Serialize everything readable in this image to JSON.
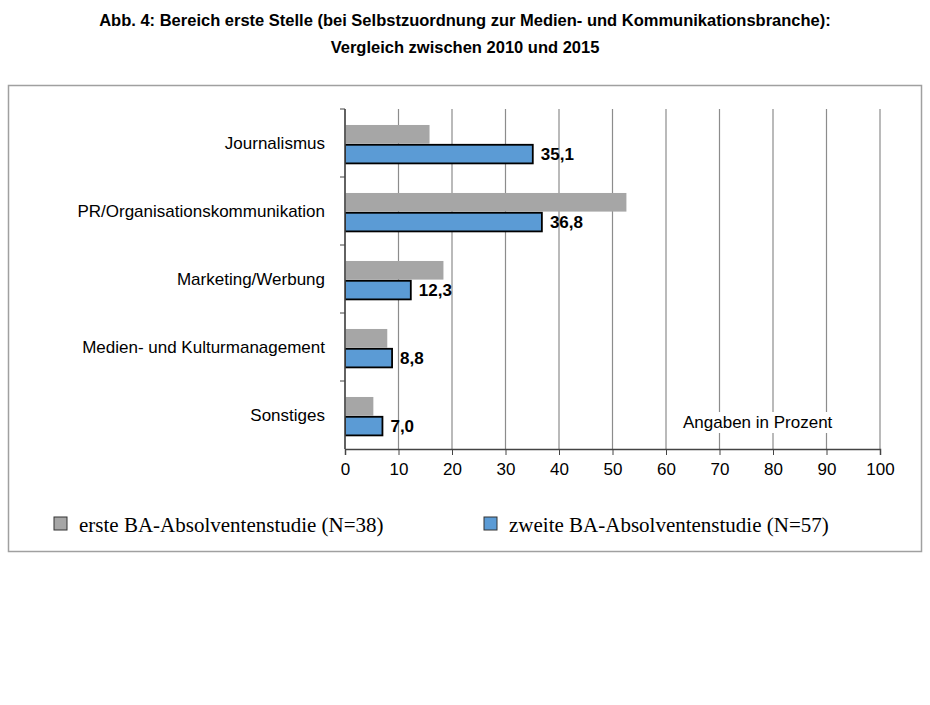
{
  "chart_data": {
    "type": "bar",
    "orientation": "horizontal",
    "title": "Abb. 4: Bereich erste Stelle (bei Selbstzuordnung zur Medien- und Kommunikationsbranche):",
    "subtitle": "Vergleich zwischen 2010 und 2015",
    "categories": [
      "Journalismus",
      "PR/Organisationskommunikation",
      "Marketing/Werbung",
      "Medien- und Kulturmanagement",
      "Sonstiges"
    ],
    "series": [
      {
        "name": "erste BA-Absolventenstudie (N=38)",
        "color": "#a6a6a6",
        "values": [
          15.8,
          52.6,
          18.4,
          7.9,
          5.3
        ]
      },
      {
        "name": "zweite BA-Absolventenstudie (N=57)",
        "color": "#5b9bd5",
        "values": [
          35.1,
          36.8,
          12.3,
          8.8,
          7.0
        ],
        "value_labels": [
          "35,1",
          "36,8",
          "12,3",
          "8,8",
          "7,0"
        ]
      }
    ],
    "xlim": [
      0,
      100
    ],
    "xticks": [
      0,
      10,
      20,
      30,
      40,
      50,
      60,
      70,
      80,
      90,
      100
    ],
    "grid": true,
    "legend": "bottom",
    "data_labels": true,
    "annotation": "Angaben in Prozent"
  }
}
